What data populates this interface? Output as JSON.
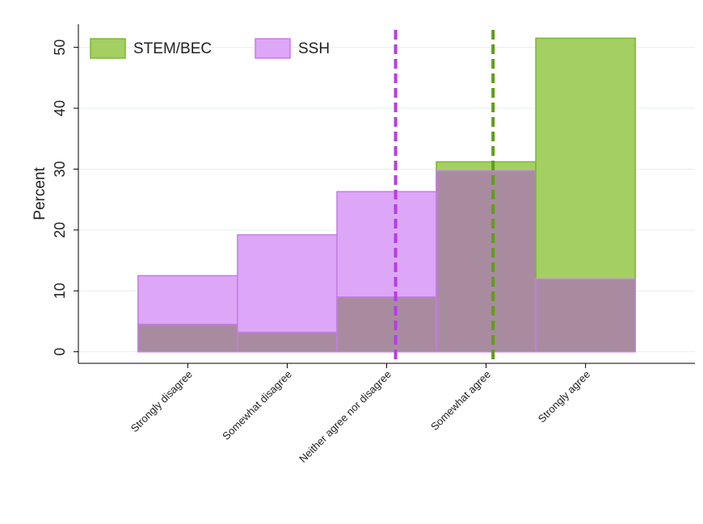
{
  "chart_data": {
    "type": "overlaid-bar",
    "y_label": "Percent",
    "categories": [
      "Strongly disagree",
      "Somewhat disagree",
      "Neither agree nor disagree",
      "Somewhat agree",
      "Strongly agree"
    ],
    "series": [
      {
        "name": "STEM/BEC",
        "color": "#a3cf63",
        "stroke": "#7ab82f",
        "values": [
          4.5,
          3.2,
          9.0,
          31.2,
          51.5
        ]
      },
      {
        "name": "SSH",
        "color": "#dda6f7",
        "stroke": "#c67ce8",
        "values": [
          12.5,
          19.2,
          26.3,
          29.7,
          11.9
        ]
      }
    ],
    "overlap_color": "#a98b9f",
    "reference_lines": [
      {
        "color": "#b43ee8",
        "value": 3.09
      },
      {
        "color": "#5da012",
        "value": 4.07
      }
    ],
    "xlim": [
      -0.1,
      6.1
    ],
    "ylim": [
      -1.9,
      53.8
    ],
    "yticks": [
      0,
      10,
      20,
      30,
      40,
      50
    ],
    "grid": true,
    "legend": "top-left"
  }
}
